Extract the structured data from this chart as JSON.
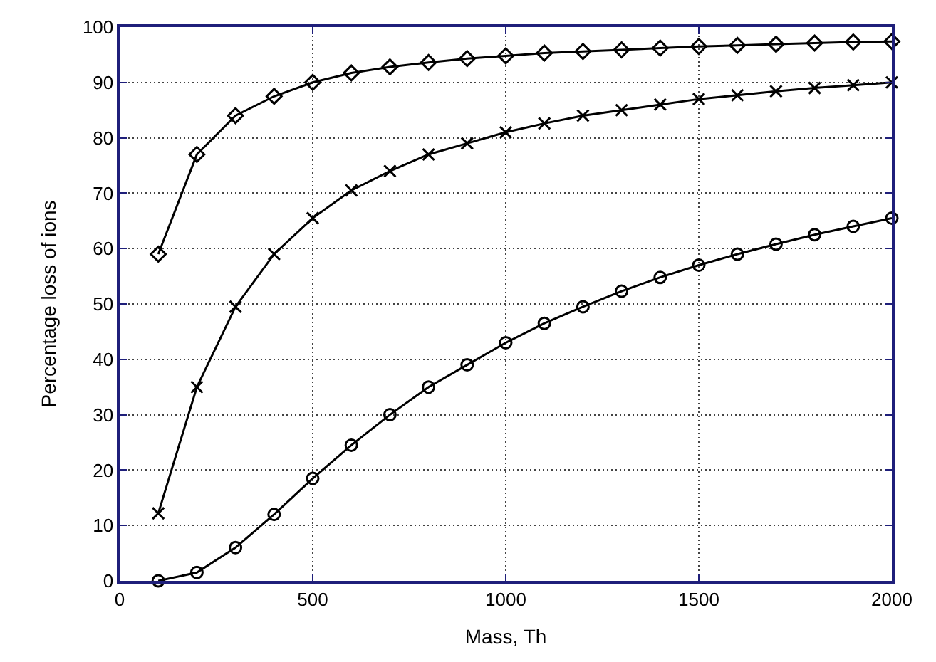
{
  "chart_data": {
    "type": "line",
    "xlabel": "Mass, Th",
    "ylabel": "Percentage loss of ions",
    "x": [
      100,
      200,
      300,
      400,
      500,
      600,
      700,
      800,
      900,
      1000,
      1100,
      1200,
      1300,
      1400,
      1500,
      1600,
      1700,
      1800,
      1900,
      2000
    ],
    "series": [
      {
        "color": "#000000",
        "marker": "diamond",
        "values": [
          59,
          77,
          84,
          87.5,
          90,
          91.7,
          92.8,
          93.6,
          94.3,
          94.8,
          95.3,
          95.6,
          95.9,
          96.2,
          96.5,
          96.7,
          96.9,
          97.1,
          97.3,
          97.4
        ]
      },
      {
        "color": "#000000",
        "marker": "cross",
        "values": [
          12.2,
          35,
          49.5,
          59,
          65.5,
          70.5,
          74,
          77,
          79,
          81,
          82.6,
          84,
          85,
          86,
          87,
          87.7,
          88.4,
          89,
          89.5,
          90
        ]
      },
      {
        "color": "#000000",
        "marker": "circle",
        "values": [
          0,
          1.5,
          6,
          12,
          18.5,
          24.5,
          30,
          35,
          39,
          43,
          46.5,
          49.5,
          52.3,
          54.8,
          57,
          59,
          60.8,
          62.5,
          64,
          65.5
        ]
      }
    ],
    "xlim": [
      0,
      2000
    ],
    "xticks": [
      0,
      500,
      1000,
      1500,
      2000
    ],
    "ylim": [
      0,
      100
    ],
    "yticks": [
      0,
      10,
      20,
      30,
      40,
      50,
      60,
      70,
      80,
      90,
      100
    ],
    "grid": true,
    "line_style": "solid"
  }
}
